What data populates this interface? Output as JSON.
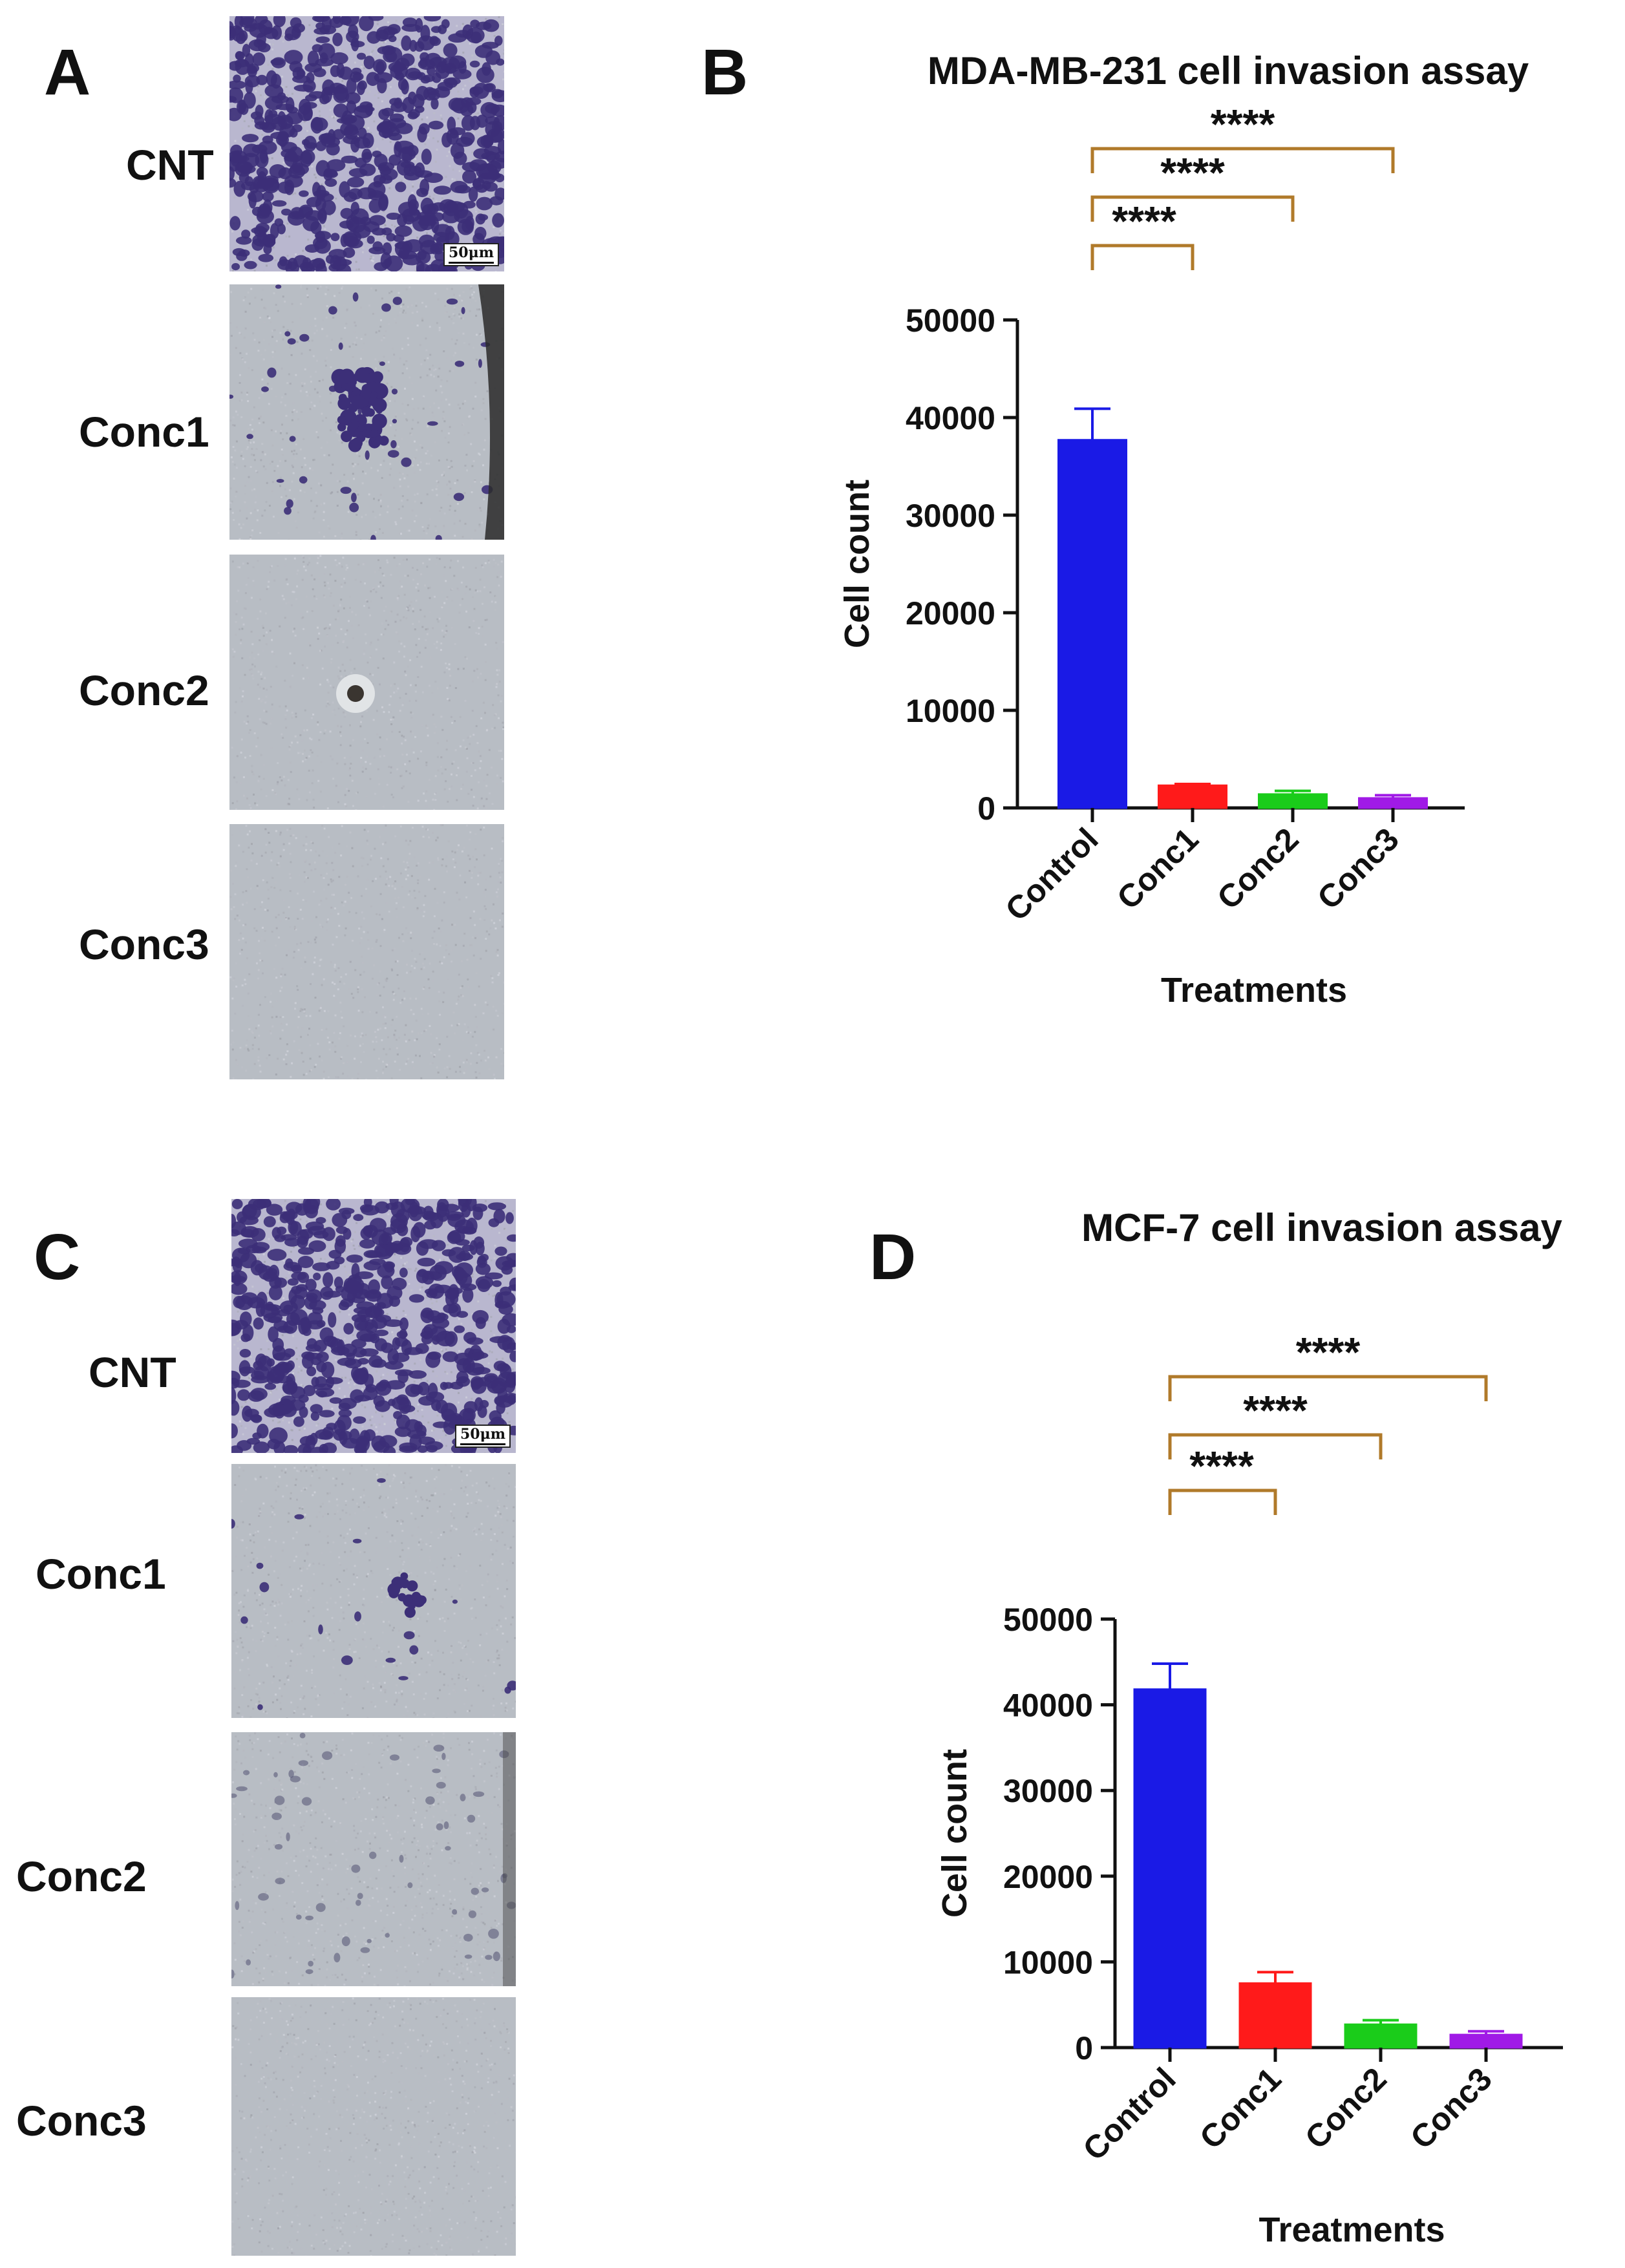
{
  "panels": {
    "A": {
      "letter": "A",
      "rows": [
        {
          "label": "CNT",
          "scale": "50μm"
        },
        {
          "label": "Conc1"
        },
        {
          "label": "Conc2"
        },
        {
          "label": "Conc3"
        }
      ]
    },
    "C": {
      "letter": "C",
      "rows": [
        {
          "label": "CNT",
          "scale": "50μm"
        },
        {
          "label": "Conc1"
        },
        {
          "label": "Conc2"
        },
        {
          "label": "Conc3"
        }
      ]
    },
    "B": {
      "letter": "B"
    },
    "D": {
      "letter": "D"
    }
  },
  "colors": {
    "Control": "#1a1ae6",
    "Conc1": "#ff1a1a",
    "Conc2": "#1acc1a",
    "Conc3": "#a01ae6",
    "bracket": "#b07a2a",
    "stain": "#3c2f78",
    "membrane": "#b8bdc4"
  },
  "chart_data": [
    {
      "type": "bar",
      "title": "MDA-MB-231 cell invasion assay",
      "xlabel": "Treatments",
      "ylabel": "Cell count",
      "categories": [
        "Control",
        "Conc1",
        "Conc2",
        "Conc3"
      ],
      "values": [
        37700,
        2300,
        1400,
        1000
      ],
      "errors": [
        3200,
        150,
        350,
        300
      ],
      "ylim": [
        0,
        50000
      ],
      "yticks": [
        0,
        10000,
        20000,
        30000,
        40000,
        50000
      ],
      "significance": [
        {
          "from": "Control",
          "to": "Conc1",
          "label": "****"
        },
        {
          "from": "Control",
          "to": "Conc2",
          "label": "****"
        },
        {
          "from": "Control",
          "to": "Conc3",
          "label": "****"
        }
      ]
    },
    {
      "type": "bar",
      "title": "MCF-7 cell invasion assay",
      "xlabel": "Treatments",
      "ylabel": "Cell count",
      "categories": [
        "Control",
        "Conc1",
        "Conc2",
        "Conc3"
      ],
      "values": [
        41800,
        7500,
        2700,
        1500
      ],
      "errors": [
        3000,
        1300,
        500,
        400
      ],
      "ylim": [
        0,
        50000
      ],
      "yticks": [
        0,
        10000,
        20000,
        30000,
        40000,
        50000
      ],
      "significance": [
        {
          "from": "Control",
          "to": "Conc1",
          "label": "****"
        },
        {
          "from": "Control",
          "to": "Conc2",
          "label": "****"
        },
        {
          "from": "Control",
          "to": "Conc3",
          "label": "****"
        }
      ]
    }
  ]
}
